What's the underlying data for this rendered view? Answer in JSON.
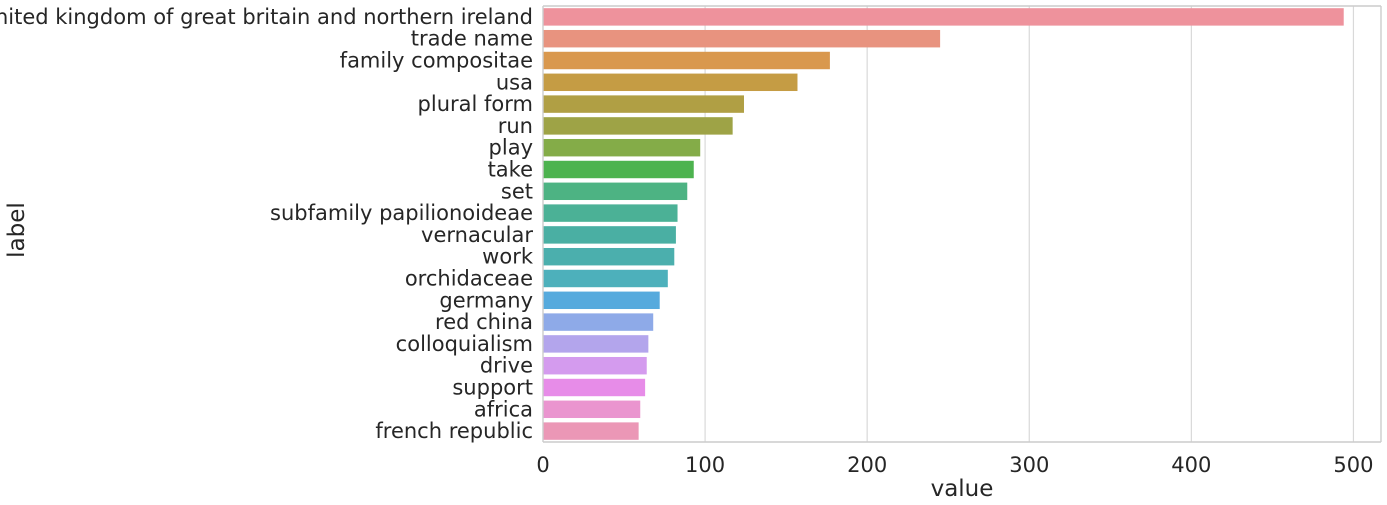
{
  "chart_data": {
    "type": "bar",
    "orientation": "horizontal",
    "xlabel": "value",
    "ylabel": "label",
    "xlim": [
      0,
      517
    ],
    "xticks": [
      0,
      100,
      200,
      300,
      400,
      500
    ],
    "xtick_labels": [
      "0",
      "100",
      "200",
      "300",
      "400",
      "500"
    ],
    "grid": "vertical",
    "categories": [
      "united kingdom of great britain and northern ireland",
      "trade name",
      "family compositae",
      "usa",
      "plural form",
      "run",
      "play",
      "take",
      "set",
      "subfamily papilionoideae",
      "vernacular",
      "work",
      "orchidaceae",
      "germany",
      "red china",
      "colloquialism",
      "drive",
      "support",
      "africa",
      "french republic"
    ],
    "values": [
      494,
      245,
      177,
      157,
      124,
      117,
      97,
      93,
      89,
      83,
      82,
      81,
      77,
      72,
      68,
      65,
      64,
      63,
      60,
      59
    ],
    "colors": [
      "#ee929c",
      "#e8937f",
      "#d9984e",
      "#c59c44",
      "#b09f44",
      "#9ea346",
      "#84ac48",
      "#4db34f",
      "#4db383",
      "#4bb196",
      "#4aafa3",
      "#4bafad",
      "#4db0bb",
      "#56aadd",
      "#8eaae8",
      "#b3a5ec",
      "#d49bee",
      "#e78ce8",
      "#ea95cf",
      "#eb97b6"
    ]
  }
}
